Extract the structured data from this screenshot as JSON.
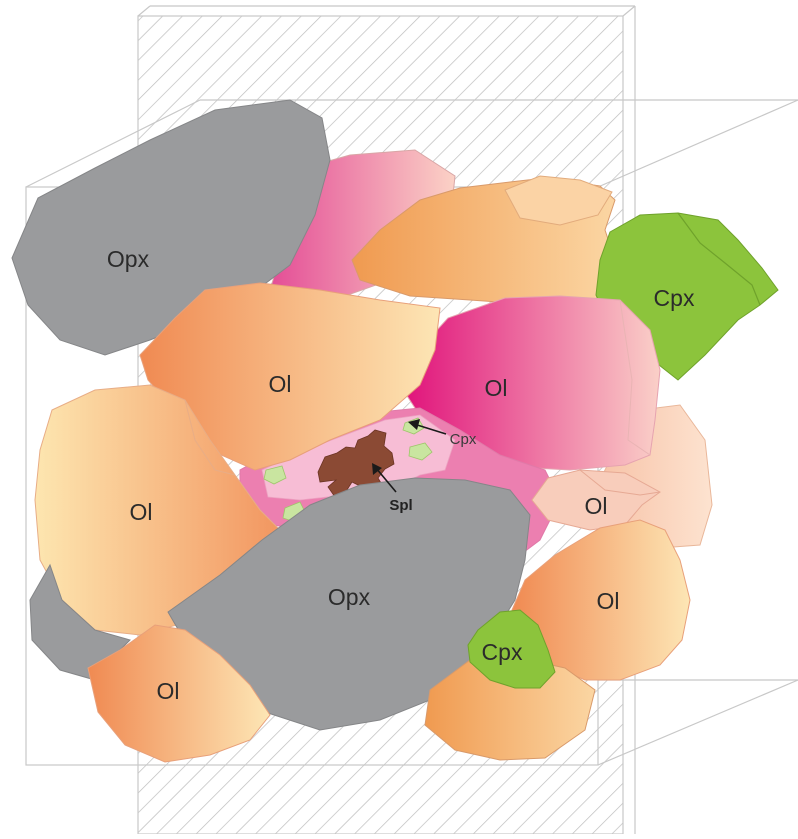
{
  "diagram": {
    "labels": {
      "opx_top": "Opx",
      "opx_bottom": "Opx",
      "ol_center": "Ol",
      "ol_magenta": "Ol",
      "ol_left": "Ol",
      "ol_small_right": "Ol",
      "ol_right": "Ol",
      "ol_bottom_left": "Ol",
      "cpx_top_right": "Cpx",
      "cpx_bottom": "Cpx",
      "cpx_pointer": "Cpx",
      "spl_pointer": "Spl"
    },
    "colors": {
      "opx": "#9a9b9d",
      "cpx": "#8cc43c",
      "ol_orange": "#f0945a",
      "ol_cream": "#fde0a8",
      "ol_magenta": "#e2157e",
      "spinel": "#8b4a34",
      "hatch": "#bdbdbd",
      "box": "#c8c8c8"
    }
  }
}
